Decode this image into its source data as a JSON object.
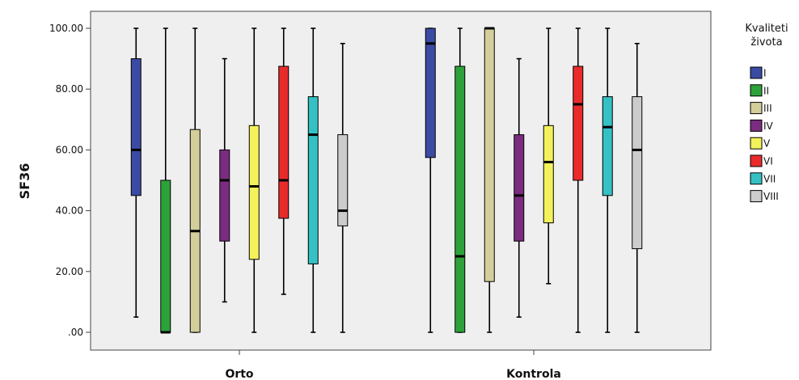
{
  "chart_data": {
    "type": "boxplot",
    "title": "",
    "xlabel": "",
    "ylabel": "SF36",
    "ylim": [
      0,
      100
    ],
    "yticks": [
      ".00",
      "20.00",
      "40.00",
      "60.00",
      "80.00",
      "100.00"
    ],
    "grid": false,
    "legend_title": "Kvaliteti\nživota",
    "legend_position": "right",
    "categories": [
      "Orto",
      "Kontrola"
    ],
    "series": [
      {
        "name": "I",
        "color": "#3b4ba4",
        "boxes": [
          {
            "min": 5,
            "q1": 45,
            "median": 60,
            "q3": 90,
            "max": 100
          },
          {
            "min": 0,
            "q1": 57.5,
            "median": 95,
            "q3": 100,
            "max": 100
          }
        ]
      },
      {
        "name": "II",
        "color": "#2ea23a",
        "boxes": [
          {
            "min": 0,
            "q1": 0,
            "median": 0,
            "q3": 50,
            "max": 100
          },
          {
            "min": 0,
            "q1": 0,
            "median": 25,
            "q3": 87.5,
            "max": 100
          }
        ]
      },
      {
        "name": "III",
        "color": "#d4cf9a",
        "boxes": [
          {
            "min": 0,
            "q1": 0,
            "median": 33.3,
            "q3": 66.7,
            "max": 100
          },
          {
            "min": 0,
            "q1": 16.7,
            "median": 100,
            "q3": 100,
            "max": 100
          }
        ]
      },
      {
        "name": "IV",
        "color": "#7b2c80",
        "boxes": [
          {
            "min": 10,
            "q1": 30,
            "median": 50,
            "q3": 60,
            "max": 90
          },
          {
            "min": 5,
            "q1": 30,
            "median": 45,
            "q3": 65,
            "max": 90
          }
        ]
      },
      {
        "name": "V",
        "color": "#f4f25b",
        "boxes": [
          {
            "min": 0,
            "q1": 24,
            "median": 48,
            "q3": 68,
            "max": 100
          },
          {
            "min": 16,
            "q1": 36,
            "median": 56,
            "q3": 68,
            "max": 100
          }
        ]
      },
      {
        "name": "VI",
        "color": "#ea2b2b",
        "boxes": [
          {
            "min": 12.5,
            "q1": 37.5,
            "median": 50,
            "q3": 87.5,
            "max": 100
          },
          {
            "min": 0,
            "q1": 50,
            "median": 75,
            "q3": 87.5,
            "max": 100
          }
        ]
      },
      {
        "name": "VII",
        "color": "#35c1c4",
        "boxes": [
          {
            "min": 0,
            "q1": 22.5,
            "median": 65,
            "q3": 77.5,
            "max": 100
          },
          {
            "min": 0,
            "q1": 45,
            "median": 67.5,
            "q3": 77.5,
            "max": 100
          }
        ]
      },
      {
        "name": "VIII",
        "color": "#cccccc",
        "boxes": [
          {
            "min": 0,
            "q1": 35,
            "median": 40,
            "q3": 65,
            "max": 95
          },
          {
            "min": 0,
            "q1": 27.5,
            "median": 60,
            "q3": 77.5,
            "max": 95
          }
        ]
      }
    ]
  }
}
